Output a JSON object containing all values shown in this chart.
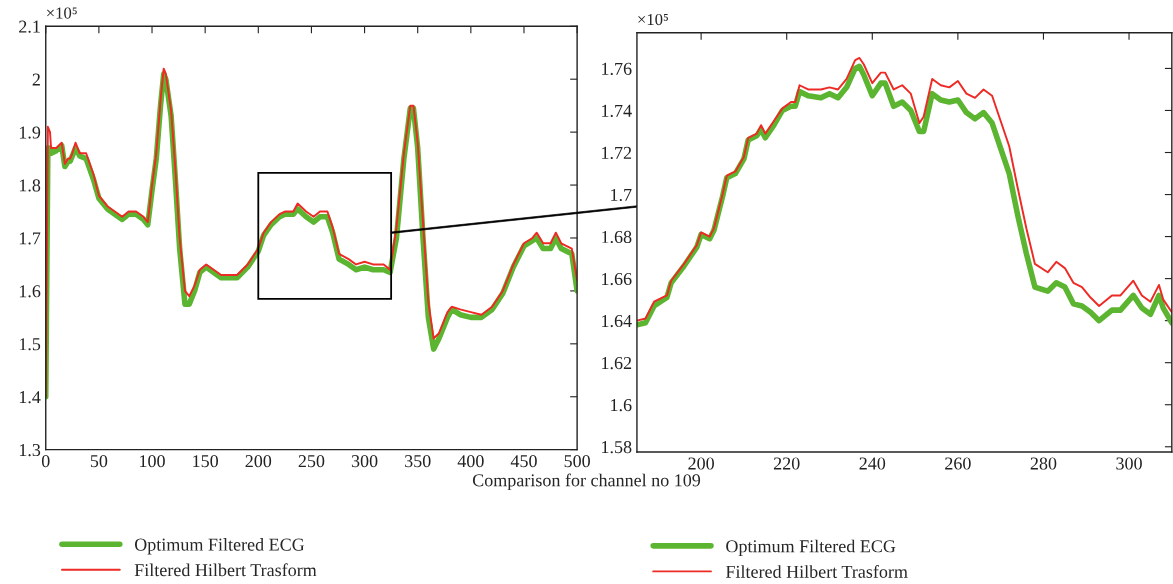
{
  "chart_data": [
    {
      "type": "line",
      "xlabel": "Comparison for channel no 109",
      "annotations": [
        "×10⁵"
      ],
      "xlim": [
        0,
        500
      ],
      "ylim": [
        1.3,
        2.1
      ],
      "xticks": [
        0,
        50,
        100,
        150,
        200,
        250,
        300,
        350,
        400,
        450,
        500
      ],
      "yticks": [
        1.3,
        1.4,
        1.5,
        1.6,
        1.7,
        1.8,
        1.9,
        2,
        2.1
      ],
      "legend": "bottom",
      "grid": false,
      "x": [
        0,
        2,
        4,
        5,
        10,
        15,
        18,
        21,
        23,
        25,
        28,
        32,
        38,
        45,
        50,
        58,
        65,
        72,
        78,
        85,
        92,
        96,
        100,
        104,
        108,
        111,
        113,
        118,
        122,
        126,
        131,
        135,
        140,
        145,
        151,
        158,
        165,
        172,
        180,
        190,
        200,
        205,
        212,
        220,
        225,
        233,
        237,
        245,
        252,
        258,
        265,
        270,
        276,
        285,
        292,
        300,
        308,
        318,
        324,
        330,
        337,
        343,
        346,
        350,
        355,
        360,
        365,
        370,
        378,
        382,
        390,
        400,
        410,
        420,
        430,
        440,
        450,
        458,
        462,
        468,
        475,
        480,
        485,
        495,
        500
      ],
      "series": [
        {
          "name": "Optimum Filtered ECG",
          "color": "#5cb531",
          "values": [
            1.4,
            1.87,
            1.87,
            1.86,
            1.865,
            1.875,
            1.835,
            1.845,
            1.845,
            1.855,
            1.87,
            1.855,
            1.85,
            1.81,
            1.775,
            1.755,
            1.745,
            1.735,
            1.745,
            1.745,
            1.735,
            1.725,
            1.79,
            1.85,
            1.95,
            2.01,
            2.0,
            1.93,
            1.81,
            1.68,
            1.575,
            1.575,
            1.6,
            1.635,
            1.645,
            1.635,
            1.625,
            1.625,
            1.625,
            1.645,
            1.675,
            1.705,
            1.725,
            1.74,
            1.745,
            1.745,
            1.755,
            1.74,
            1.73,
            1.74,
            1.74,
            1.71,
            1.66,
            1.65,
            1.64,
            1.645,
            1.64,
            1.64,
            1.635,
            1.7,
            1.85,
            1.945,
            1.945,
            1.87,
            1.7,
            1.55,
            1.49,
            1.51,
            1.55,
            1.565,
            1.555,
            1.55,
            1.55,
            1.565,
            1.595,
            1.645,
            1.685,
            1.695,
            1.7,
            1.68,
            1.68,
            1.7,
            1.68,
            1.67,
            1.6
          ]
        },
        {
          "name": "Filtered Hilbert Trasform",
          "color": "#ee2a24",
          "values": [
            1.4,
            1.91,
            1.9,
            1.87,
            1.87,
            1.88,
            1.84,
            1.85,
            1.85,
            1.86,
            1.88,
            1.86,
            1.86,
            1.82,
            1.78,
            1.76,
            1.75,
            1.74,
            1.75,
            1.75,
            1.74,
            1.73,
            1.8,
            1.86,
            1.96,
            2.02,
            2.01,
            1.94,
            1.83,
            1.7,
            1.6,
            1.59,
            1.61,
            1.64,
            1.65,
            1.64,
            1.63,
            1.63,
            1.63,
            1.65,
            1.68,
            1.71,
            1.73,
            1.745,
            1.75,
            1.75,
            1.765,
            1.75,
            1.74,
            1.75,
            1.75,
            1.72,
            1.67,
            1.66,
            1.65,
            1.655,
            1.65,
            1.65,
            1.64,
            1.72,
            1.86,
            1.95,
            1.95,
            1.88,
            1.73,
            1.58,
            1.51,
            1.52,
            1.56,
            1.57,
            1.565,
            1.56,
            1.555,
            1.57,
            1.6,
            1.65,
            1.69,
            1.7,
            1.71,
            1.69,
            1.69,
            1.71,
            1.69,
            1.68,
            1.62
          ]
        }
      ]
    },
    {
      "type": "line",
      "annotations": [
        "×10⁵"
      ],
      "xlim": [
        185,
        310
      ],
      "ylim": [
        1.5775,
        1.777
      ],
      "xticks": [
        200,
        220,
        240,
        260,
        280,
        300
      ],
      "yticks": [
        1.58,
        1.6,
        1.62,
        1.64,
        1.66,
        1.68,
        1.7,
        1.72,
        1.74,
        1.76
      ],
      "legend": "bottom",
      "grid": false,
      "x": [
        185,
        187,
        189,
        192,
        193,
        196,
        199,
        200,
        202,
        203,
        205,
        206,
        208,
        210,
        211,
        213,
        214,
        215,
        217,
        219,
        221,
        222,
        223,
        225,
        228,
        230,
        232,
        234,
        236,
        237,
        238,
        240,
        242,
        243,
        245,
        247,
        249,
        251,
        252,
        254,
        256,
        258,
        260,
        262,
        264,
        266,
        268,
        270,
        272,
        274,
        276,
        278,
        281,
        283,
        285,
        287,
        289,
        291,
        293,
        296,
        298,
        301,
        303,
        305,
        307,
        308,
        310
      ],
      "series": [
        {
          "name": "Optimum Filtered ECG",
          "color": "#5cb531",
          "values": [
            1.638,
            1.639,
            1.647,
            1.651,
            1.658,
            1.666,
            1.675,
            1.681,
            1.679,
            1.683,
            1.699,
            1.708,
            1.71,
            1.717,
            1.726,
            1.728,
            1.731,
            1.727,
            1.733,
            1.74,
            1.742,
            1.742,
            1.749,
            1.747,
            1.746,
            1.748,
            1.746,
            1.751,
            1.76,
            1.761,
            1.757,
            1.747,
            1.753,
            1.753,
            1.742,
            1.744,
            1.74,
            1.73,
            1.73,
            1.748,
            1.745,
            1.744,
            1.745,
            1.739,
            1.736,
            1.739,
            1.734,
            1.722,
            1.71,
            1.69,
            1.672,
            1.656,
            1.654,
            1.658,
            1.656,
            1.648,
            1.647,
            1.644,
            1.64,
            1.645,
            1.645,
            1.652,
            1.646,
            1.643,
            1.652,
            1.646,
            1.639
          ]
        },
        {
          "name": "Filtered Hilbert Trasform",
          "color": "#ee2a24",
          "values": [
            1.64,
            1.641,
            1.649,
            1.652,
            1.659,
            1.667,
            1.676,
            1.682,
            1.68,
            1.684,
            1.7,
            1.709,
            1.711,
            1.718,
            1.727,
            1.729,
            1.733,
            1.729,
            1.735,
            1.741,
            1.744,
            1.744,
            1.752,
            1.75,
            1.75,
            1.751,
            1.75,
            1.755,
            1.764,
            1.765,
            1.762,
            1.753,
            1.758,
            1.758,
            1.75,
            1.752,
            1.748,
            1.734,
            1.737,
            1.755,
            1.752,
            1.751,
            1.754,
            1.748,
            1.746,
            1.75,
            1.747,
            1.735,
            1.723,
            1.703,
            1.684,
            1.667,
            1.663,
            1.668,
            1.665,
            1.658,
            1.656,
            1.651,
            1.647,
            1.652,
            1.652,
            1.659,
            1.652,
            1.649,
            1.657,
            1.65,
            1.644
          ]
        }
      ]
    }
  ]
}
